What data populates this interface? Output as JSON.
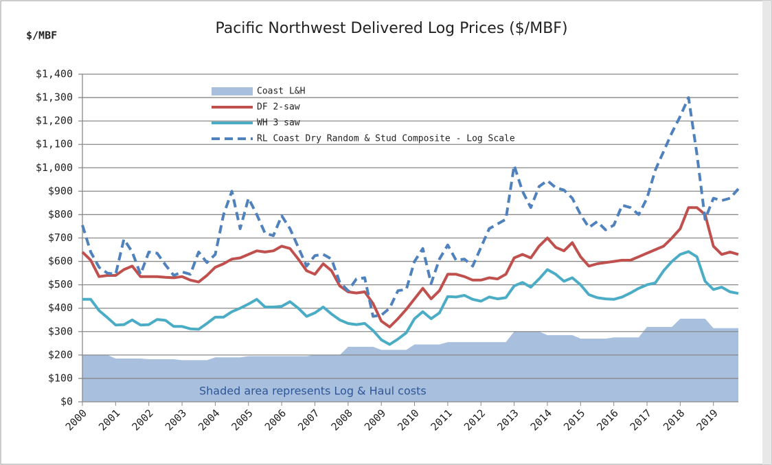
{
  "chart_data": {
    "type": "line",
    "title": "Pacific Northwest Delivered Log Prices ($/MBF)",
    "y_label": "$/MBF",
    "annotation": "Shaded area represents Log & Haul costs",
    "categories": [
      "2000",
      null,
      null,
      null,
      "2001",
      null,
      null,
      null,
      "2002",
      null,
      null,
      null,
      "2003",
      null,
      null,
      null,
      "2004",
      null,
      null,
      null,
      "2005",
      null,
      null,
      null,
      "2006",
      null,
      null,
      null,
      "2007",
      null,
      null,
      null,
      "2008",
      null,
      null,
      null,
      "2009",
      null,
      null,
      null,
      "2010",
      null,
      null,
      null,
      "2011",
      null,
      null,
      null,
      "2012",
      null,
      null,
      null,
      "2013",
      null,
      null,
      null,
      "2014",
      null,
      null,
      null,
      "2015",
      null,
      null,
      null,
      "2016",
      null,
      null,
      null,
      "2017",
      null,
      null,
      null,
      "2018",
      null,
      null,
      null,
      "2019",
      null,
      null,
      null
    ],
    "series": [
      {
        "name": "Coast L&H",
        "color": "#a8c0de",
        "style": "area",
        "values": [
          200,
          200,
          200,
          200,
          185,
          185,
          185,
          185,
          182,
          182,
          182,
          182,
          178,
          178,
          178,
          178,
          190,
          190,
          190,
          190,
          195,
          195,
          195,
          195,
          195,
          195,
          195,
          195,
          200,
          200,
          200,
          200,
          235,
          235,
          235,
          235,
          222,
          222,
          222,
          222,
          245,
          245,
          245,
          245,
          255,
          255,
          255,
          255,
          255,
          255,
          255,
          255,
          300,
          300,
          300,
          300,
          285,
          285,
          285,
          285,
          270,
          270,
          270,
          270,
          275,
          275,
          275,
          275,
          320,
          320,
          320,
          320,
          355,
          355,
          355,
          355,
          315,
          315,
          315,
          315
        ]
      },
      {
        "name": "DF 2-saw",
        "color": "#c0504d",
        "style": "line",
        "values": [
          640,
          605,
          535,
          540,
          540,
          565,
          580,
          535,
          535,
          535,
          532,
          530,
          535,
          520,
          512,
          540,
          575,
          590,
          610,
          615,
          630,
          645,
          640,
          645,
          665,
          655,
          610,
          560,
          545,
          590,
          560,
          495,
          470,
          465,
          470,
          420,
          345,
          320,
          355,
          395,
          440,
          485,
          440,
          475,
          545,
          545,
          535,
          520,
          520,
          530,
          525,
          545,
          615,
          630,
          615,
          665,
          700,
          660,
          645,
          680,
          620,
          580,
          590,
          595,
          600,
          605,
          605,
          620,
          635,
          650,
          665,
          700,
          740,
          830,
          830,
          800,
          665,
          630,
          640,
          630
        ]
      },
      {
        "name": "WH 3 saw",
        "color": "#4bacc6",
        "style": "line",
        "values": [
          438,
          438,
          390,
          360,
          328,
          330,
          350,
          328,
          330,
          352,
          348,
          322,
          322,
          312,
          310,
          335,
          362,
          362,
          385,
          400,
          418,
          438,
          405,
          405,
          408,
          428,
          400,
          365,
          380,
          405,
          375,
          350,
          335,
          330,
          335,
          305,
          265,
          245,
          268,
          295,
          355,
          385,
          355,
          380,
          450,
          448,
          455,
          438,
          430,
          448,
          440,
          445,
          495,
          510,
          490,
          525,
          565,
          545,
          515,
          530,
          500,
          458,
          445,
          440,
          438,
          448,
          465,
          485,
          500,
          508,
          560,
          600,
          630,
          642,
          620,
          515,
          480,
          490,
          470,
          463
        ]
      },
      {
        "name": "RL Coast Dry Random & Stud Composite - Log Scale",
        "color": "#4f81bd",
        "style": "dashed",
        "values": [
          755,
          640,
          575,
          550,
          545,
          695,
          640,
          545,
          640,
          635,
          585,
          540,
          555,
          545,
          640,
          595,
          630,
          800,
          900,
          740,
          870,
          800,
          720,
          710,
          795,
          740,
          660,
          580,
          625,
          630,
          610,
          510,
          475,
          525,
          530,
          365,
          370,
          400,
          475,
          480,
          600,
          655,
          505,
          610,
          670,
          605,
          610,
          580,
          660,
          740,
          760,
          780,
          1010,
          900,
          830,
          920,
          945,
          915,
          905,
          870,
          800,
          745,
          770,
          735,
          755,
          840,
          830,
          800,
          870,
          990,
          1070,
          1150,
          1220,
          1300,
          1060,
          780,
          870,
          860,
          870,
          910
        ]
      }
    ],
    "ylim": [
      0,
      1400
    ],
    "yticks": [
      {
        "value": 0,
        "label": "$0"
      },
      {
        "value": 100,
        "label": "$100"
      },
      {
        "value": 200,
        "label": "$200"
      },
      {
        "value": 300,
        "label": "$300"
      },
      {
        "value": 400,
        "label": "$400"
      },
      {
        "value": 500,
        "label": "$500"
      },
      {
        "value": 600,
        "label": "$600"
      },
      {
        "value": 700,
        "label": "$700"
      },
      {
        "value": 800,
        "label": "$800"
      },
      {
        "value": 900,
        "label": "$900"
      },
      {
        "value": 1000,
        "label": "$1,000"
      },
      {
        "value": 1100,
        "label": "$1,100"
      },
      {
        "value": 1200,
        "label": "$1,200"
      },
      {
        "value": 1300,
        "label": "$1,300"
      },
      {
        "value": 1400,
        "label": "$1,400"
      }
    ],
    "grid": true,
    "legend": "top-left"
  }
}
